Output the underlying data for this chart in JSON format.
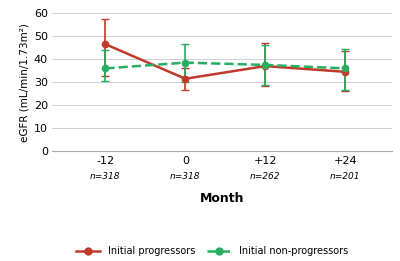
{
  "x_positions": [
    -12,
    0,
    12,
    24
  ],
  "x_labels": [
    "-12",
    "0",
    "+12",
    "+24"
  ],
  "n_labels": [
    "n=318",
    "n=318",
    "n=262",
    "n=201"
  ],
  "progressors_mean": [
    46.5,
    31.5,
    37.0,
    34.5
  ],
  "progressors_err_upper": [
    11.0,
    4.5,
    10.0,
    9.0
  ],
  "progressors_err_lower": [
    14.0,
    5.0,
    8.5,
    8.5
  ],
  "nonprogressors_mean": [
    36.0,
    38.5,
    37.5,
    36.0
  ],
  "nonprogressors_err_upper": [
    8.0,
    8.0,
    8.5,
    8.5
  ],
  "nonprogressors_err_lower": [
    5.5,
    8.5,
    8.5,
    9.5
  ],
  "prog_color": "#c0392b",
  "nonprog_color": "#27ae60",
  "ylim": [
    0,
    60
  ],
  "yticks": [
    0,
    10,
    20,
    30,
    40,
    50,
    60
  ],
  "xlabel": "Month",
  "ylabel": "eGFR (mL/min/1.73m²)",
  "legend_prog": "Initial progressors",
  "legend_nonprog": "Initial non-progressors",
  "background_color": "#ffffff"
}
